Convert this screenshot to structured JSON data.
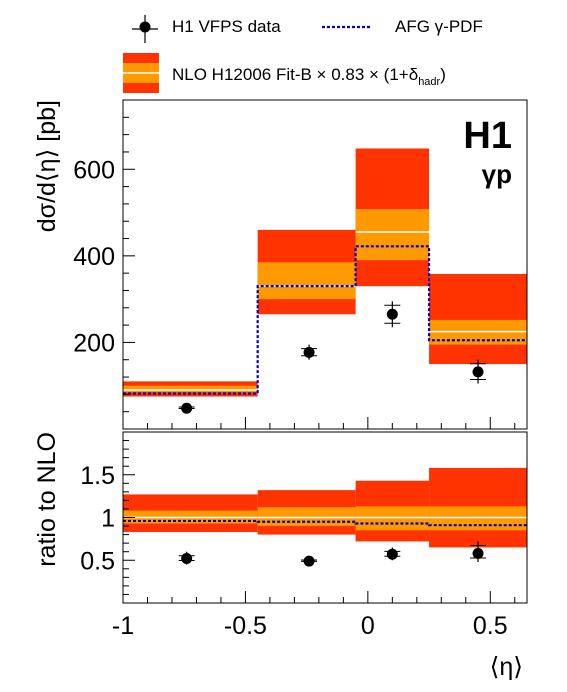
{
  "legend": {
    "data_label": "H1 VFPS data",
    "afg_label": "AFG γ-PDF",
    "nlo_label_main": "NLO H12006 Fit-B × 0.83 × (1+δ",
    "nlo_label_sub": "hadr",
    "nlo_label_close": ")"
  },
  "badge": {
    "experiment": "H1",
    "process": "γp"
  },
  "colors": {
    "band_outer": "#ff3300",
    "band_inner": "#ff9900",
    "central_line": "#ffffff",
    "afg_line": "#0000cc",
    "data_marker": "#000000"
  },
  "chart_data": [
    {
      "type": "bar",
      "title": "",
      "ylabel": "dσ/d⟨η⟩ [pb]",
      "yscale": "linear",
      "ylim": [
        0,
        760
      ],
      "yticks": [
        "200",
        "400",
        "600"
      ],
      "bins": [
        [
          -1.0,
          -0.45
        ],
        [
          -0.45,
          -0.05
        ],
        [
          -0.05,
          0.25
        ],
        [
          0.25,
          0.65
        ]
      ],
      "series": [
        {
          "name": "NLO H12006 Fit-B × 0.83 × (1+δhadr)",
          "central": [
            90,
            330,
            455,
            225
          ],
          "outer_band": [
            [
              75,
              110
            ],
            [
              265,
              460
            ],
            [
              330,
              648
            ],
            [
              150,
              358
            ]
          ],
          "inner_band": [
            [
              85,
              100
            ],
            [
              300,
              385
            ],
            [
              390,
              508
            ],
            [
              195,
              252
            ]
          ]
        },
        {
          "name": "AFG γ-PDF",
          "values": [
            82,
            330,
            422,
            205
          ]
        },
        {
          "name": "H1 VFPS data",
          "x": [
            -0.74,
            -0.24,
            0.1,
            0.45
          ],
          "y": [
            48,
            177,
            265,
            132
          ],
          "y_err": [
            [
              38,
              60
            ],
            [
              160,
              195
            ],
            [
              235,
              295
            ],
            [
              105,
              160
            ]
          ]
        }
      ],
      "grid": false,
      "legend_position": "top"
    },
    {
      "type": "bar",
      "title": "",
      "xlabel": "⟨η⟩",
      "ylabel": "ratio to NLO",
      "yscale": "linear",
      "xlim": [
        -1.0,
        0.65
      ],
      "ylim": [
        0,
        2
      ],
      "xticks": [
        "-1",
        "-0.5",
        "0",
        "0.5"
      ],
      "yticks": [
        "0.5",
        "1",
        "1.5"
      ],
      "bins": [
        [
          -1.0,
          -0.45
        ],
        [
          -0.45,
          -0.05
        ],
        [
          -0.05,
          0.25
        ],
        [
          0.25,
          0.65
        ]
      ],
      "series": [
        {
          "name": "NLO H12006 Fit-B × 0.83 × (1+δhadr)",
          "central": [
            1.0,
            1.0,
            1.0,
            1.0
          ],
          "outer_band": [
            [
              0.83,
              1.27
            ],
            [
              0.8,
              1.32
            ],
            [
              0.72,
              1.43
            ],
            [
              0.65,
              1.58
            ]
          ],
          "inner_band": [
            [
              0.93,
              1.08
            ],
            [
              0.9,
              1.12
            ],
            [
              0.85,
              1.13
            ],
            [
              0.85,
              1.13
            ]
          ]
        },
        {
          "name": "AFG γ-PDF",
          "values": [
            0.96,
            0.95,
            0.93,
            0.91
          ]
        },
        {
          "name": "H1 VFPS data",
          "x": [
            -0.74,
            -0.24,
            0.1,
            0.45
          ],
          "y": [
            0.52,
            0.49,
            0.57,
            0.58
          ],
          "y_err": [
            [
              0.45,
              0.6
            ],
            [
              0.44,
              0.55
            ],
            [
              0.5,
              0.65
            ],
            [
              0.48,
              0.72
            ]
          ]
        }
      ],
      "grid": false
    }
  ]
}
